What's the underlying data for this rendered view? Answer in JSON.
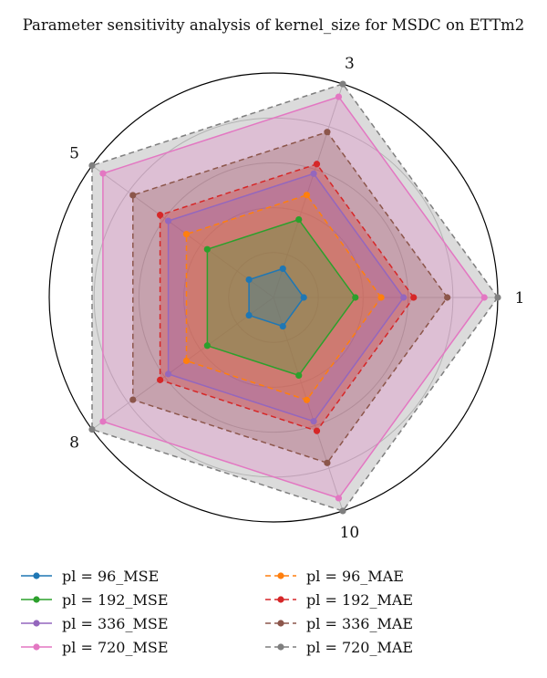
{
  "chart_data": {
    "type": "radar",
    "title": "Parameter sensitivity analysis of kernel_size for MSDC on ETTm2",
    "axes": [
      "1",
      "3",
      "5",
      "8",
      "10"
    ],
    "rlim": [
      0,
      1
    ],
    "grid": true,
    "legend_position": "bottom",
    "series": [
      {
        "name": "pl = 96_MSE",
        "color": "#1f77b4",
        "dashed": false,
        "values": [
          0.135,
          0.135,
          0.135,
          0.135,
          0.135
        ]
      },
      {
        "name": "pl = 192_MSE",
        "color": "#2ca02c",
        "dashed": false,
        "values": [
          0.365,
          0.365,
          0.365,
          0.365,
          0.365
        ]
      },
      {
        "name": "pl = 336_MSE",
        "color": "#9467bd",
        "dashed": false,
        "values": [
          0.58,
          0.58,
          0.58,
          0.58,
          0.58
        ]
      },
      {
        "name": "pl = 720_MSE",
        "color": "#e377c2",
        "dashed": false,
        "values": [
          0.94,
          0.94,
          0.94,
          0.94,
          0.94
        ]
      },
      {
        "name": "pl = 96_MAE",
        "color": "#ff7f0e",
        "dashed": true,
        "values": [
          0.48,
          0.48,
          0.48,
          0.48,
          0.48
        ]
      },
      {
        "name": "pl = 192_MAE",
        "color": "#d62728",
        "dashed": true,
        "values": [
          0.625,
          0.625,
          0.625,
          0.625,
          0.625
        ]
      },
      {
        "name": "pl = 336_MAE",
        "color": "#8c564b",
        "dashed": true,
        "values": [
          0.775,
          0.775,
          0.775,
          0.775,
          0.775
        ]
      },
      {
        "name": "pl = 720_MAE",
        "color": "#7f7f7f",
        "dashed": true,
        "values": [
          1.0,
          1.0,
          1.0,
          1.0,
          1.0
        ]
      }
    ]
  }
}
